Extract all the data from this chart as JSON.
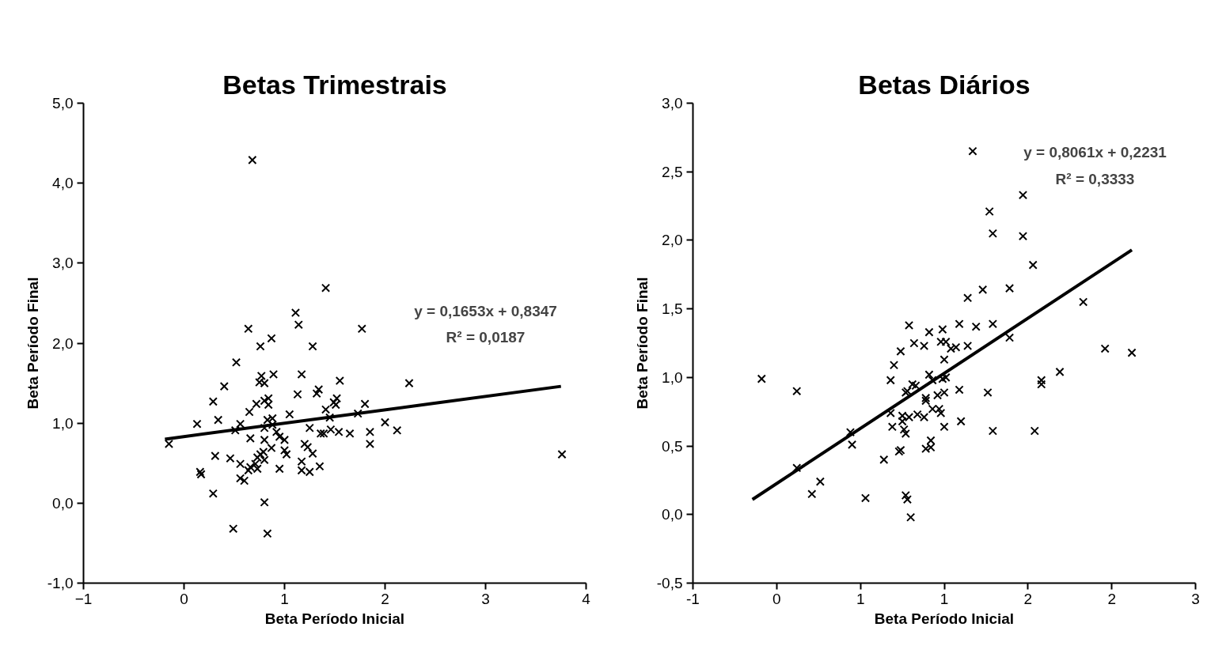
{
  "chart_data": [
    {
      "type": "scatter",
      "title": "Betas Trimestrais",
      "xlabel": "Beta Período Inicial",
      "ylabel": "Beta Período Final",
      "xlim": [
        -1,
        4
      ],
      "ylim": [
        -1,
        5
      ],
      "xticks": [
        -1,
        0,
        1,
        2,
        3,
        4
      ],
      "yticks": [
        {
          "value": -1,
          "label": "-1,0"
        },
        {
          "value": 0,
          "label": "0,0"
        },
        {
          "value": 1,
          "label": "1,0"
        },
        {
          "value": 2,
          "label": "2,0"
        },
        {
          "value": 3,
          "label": "3,0"
        },
        {
          "value": 4,
          "label": "4,0"
        },
        {
          "value": 5,
          "label": "5,0"
        }
      ],
      "grid": false,
      "annotations": [
        "y = 0,1653x + 0,8347",
        "R² = 0,0187"
      ],
      "series": [
        {
          "marker": "cross",
          "color": "#000000",
          "x": [
            0.68,
            1.41,
            0.64,
            0.76,
            0.87,
            1.11,
            1.14,
            1.28,
            1.77,
            -0.15,
            0.13,
            0.16,
            0.17,
            0.29,
            0.29,
            0.34,
            0.31,
            0.4,
            0.46,
            0.52,
            0.51,
            0.56,
            0.56,
            0.56,
            0.6,
            0.49,
            0.64,
            0.65,
            0.66,
            0.66,
            0.72,
            0.71,
            0.73,
            0.73,
            0.77,
            0.75,
            0.8,
            0.8,
            0.84,
            0.84,
            0.83,
            0.8,
            0.8,
            0.79,
            0.76,
            0.8,
            0.8,
            0.83,
            0.89,
            0.88,
            0.88,
            0.87,
            0.92,
            0.95,
            0.95,
            1.0,
            1.0,
            1.02,
            1.05,
            1.17,
            1.13,
            1.25,
            1.17,
            1.17,
            1.2,
            1.23,
            1.25,
            1.28,
            1.32,
            1.34,
            1.35,
            1.36,
            1.39,
            1.41,
            1.45,
            1.46,
            1.49,
            1.52,
            1.51,
            1.55,
            1.54,
            1.65,
            1.73,
            1.8,
            1.85,
            1.85,
            2.0,
            2.24,
            2.12,
            3.76
          ],
          "values": [
            4.29,
            2.69,
            2.18,
            1.96,
            2.06,
            2.38,
            2.23,
            1.96,
            2.18,
            0.74,
            0.99,
            0.39,
            0.36,
            0.12,
            1.27,
            1.04,
            0.59,
            1.46,
            0.56,
            1.76,
            0.91,
            0.99,
            0.49,
            0.31,
            0.28,
            -0.32,
            0.41,
            1.14,
            0.81,
            0.45,
            1.24,
            0.49,
            0.57,
            0.43,
            1.59,
            1.51,
            1.5,
            1.28,
            1.31,
            1.23,
            1.04,
            0.94,
            0.79,
            0.64,
            0.61,
            0.54,
            0.01,
            -0.38,
            1.61,
            1.06,
            0.98,
            0.69,
            0.89,
            0.83,
            0.43,
            0.79,
            0.66,
            0.61,
            1.11,
            1.61,
            1.36,
            0.94,
            0.52,
            0.41,
            0.74,
            0.7,
            0.39,
            0.62,
            1.37,
            1.42,
            0.46,
            0.87,
            0.87,
            1.17,
            1.07,
            0.92,
            1.26,
            1.31,
            1.23,
            1.53,
            0.89,
            0.87,
            1.12,
            1.24,
            0.89,
            0.74,
            1.01,
            1.5,
            0.91,
            0.61
          ]
        },
        {
          "type": "line",
          "color": "#000000",
          "x": [
            -0.19,
            3.75
          ],
          "values": [
            0.8,
            1.46
          ]
        }
      ]
    },
    {
      "type": "scatter",
      "title": "Betas Diários",
      "xlabel": "Beta Período Inicial",
      "ylabel": "Beta Período Final",
      "xlim": [
        -0.5,
        2.5
      ],
      "ylim": [
        -0.5,
        3
      ],
      "xticks": [
        {
          "value": -0.5,
          "label": "-1"
        },
        {
          "value": 0,
          "label": "0"
        },
        {
          "value": 0.5,
          "label": "1"
        },
        {
          "value": 1,
          "label": "1"
        },
        {
          "value": 1.5,
          "label": "2"
        },
        {
          "value": 2,
          "label": "2"
        },
        {
          "value": 2.5,
          "label": "3"
        }
      ],
      "yticks": [
        {
          "value": -0.5,
          "label": "-0,5"
        },
        {
          "value": 0,
          "label": "0,0"
        },
        {
          "value": 0.5,
          "label": "0,5"
        },
        {
          "value": 1,
          "label": "1,0"
        },
        {
          "value": 1.5,
          "label": "1,5"
        },
        {
          "value": 2,
          "label": "2,0"
        },
        {
          "value": 2.5,
          "label": "2,5"
        },
        {
          "value": 3,
          "label": "3,0"
        }
      ],
      "grid": false,
      "annotations": [
        "y = 0,8061x + 0,2231",
        "R² = 0,3333"
      ],
      "series": [
        {
          "marker": "cross",
          "color": "#000000",
          "x": [
            1.17,
            1.14,
            1.23,
            0.79,
            0.91,
            0.99,
            1.09,
            1.19,
            0.12,
            0.82,
            0.88,
            0.98,
            1.01,
            1.04,
            1.07,
            1.14,
            0.74,
            0.7,
            0.68,
            0.81,
            0.91,
            0.93,
            0.99,
            1.01,
            1.0,
            1.09,
            0.77,
            0.89,
            0.96,
            1.0,
            0.12,
            0.21,
            0.26,
            0.45,
            0.44,
            0.53,
            0.64,
            0.69,
            0.68,
            0.73,
            0.74,
            0.75,
            0.76,
            0.77,
            0.75,
            0.79,
            0.77,
            0.78,
            0.8,
            0.84,
            0.88,
            0.78,
            0.83,
            0.89,
            0.89,
            0.92,
            0.92,
            0.93,
            0.97,
            0.98,
            1.0,
            1.1,
            1.26,
            1.29,
            1.54,
            1.58,
            1.47,
            1.27,
            1.29,
            1.47,
            1.39,
            1.29,
            1.39,
            1.69,
            1.58,
            1.53,
            1.83,
            1.96,
            2.12,
            -0.09
          ],
          "values": [
            2.65,
            1.58,
            1.64,
            1.38,
            1.33,
            1.35,
            1.39,
            1.37,
            0.9,
            1.25,
            1.23,
            1.26,
            1.26,
            1.21,
            1.22,
            1.23,
            1.19,
            1.09,
            0.98,
            0.95,
            1.02,
            0.98,
            0.99,
            1.0,
            1.13,
            0.91,
            0.89,
            0.85,
            0.87,
            0.89,
            0.34,
            0.15,
            0.24,
            0.51,
            0.6,
            0.12,
            0.4,
            0.64,
            0.74,
            0.46,
            0.47,
            0.68,
            0.62,
            0.59,
            0.72,
            0.71,
            0.14,
            0.11,
            -0.02,
            0.73,
            0.71,
            0.9,
            0.94,
            0.83,
            0.48,
            0.54,
            0.49,
            0.77,
            0.77,
            0.74,
            0.64,
            0.68,
            0.89,
            0.61,
            0.61,
            0.95,
            2.33,
            2.21,
            2.05,
            2.03,
            1.65,
            1.39,
            1.29,
            1.04,
            0.98,
            1.82,
            1.55,
            1.21,
            1.18,
            0.99
          ]
        },
        {
          "type": "line",
          "color": "#000000",
          "x": [
            -0.145,
            2.12
          ],
          "values": [
            0.11,
            1.93
          ]
        }
      ]
    }
  ]
}
